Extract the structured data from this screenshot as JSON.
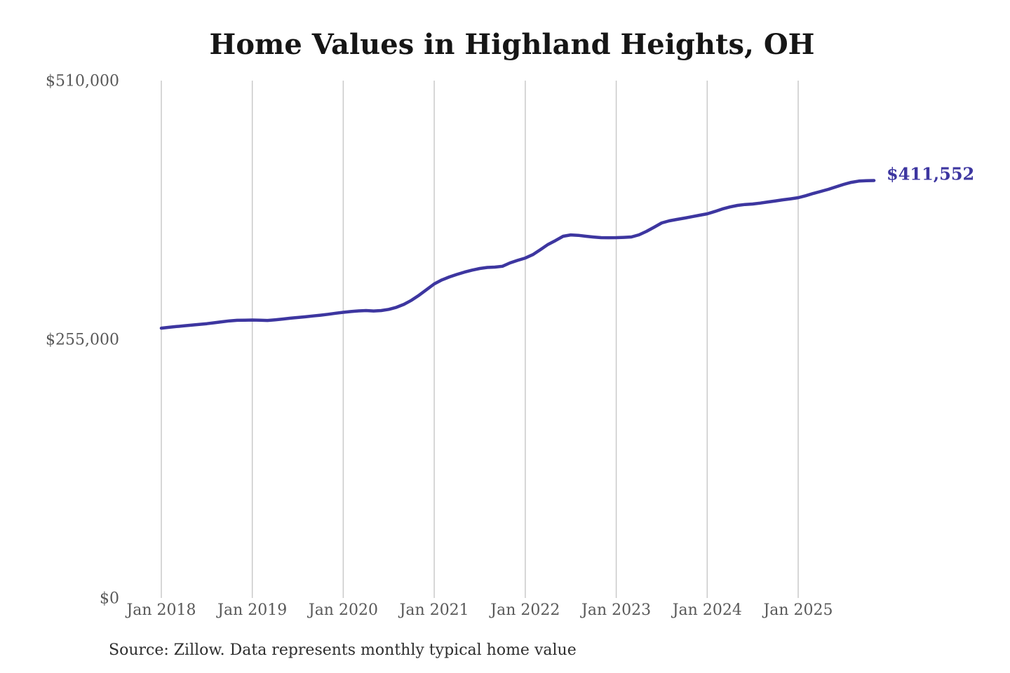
{
  "chart_data": {
    "type": "line",
    "title": "Home Values in Highland Heights, OH",
    "source": "Source: Zillow. Data represents monthly typical home value",
    "xlabel": "",
    "ylabel": "",
    "ylim": [
      0,
      510000
    ],
    "y_ticks": [
      0,
      255000,
      510000
    ],
    "y_tick_labels": [
      "$0",
      "$255,000",
      "$510,000"
    ],
    "x_tick_labels": [
      "Jan 2018",
      "Jan 2019",
      "Jan 2020",
      "Jan 2021",
      "Jan 2022",
      "Jan 2023",
      "Jan 2024",
      "Jan 2025"
    ],
    "grid": "vertical-only",
    "legend": "none",
    "line_color": "#3d36a0",
    "gridline_color": "#cacaca",
    "annotation": {
      "text": "$411,552",
      "value": 411552,
      "color": "#3d36a0"
    },
    "series": [
      {
        "name": "Monthly typical home value",
        "x": [
          "2018-01",
          "2018-02",
          "2018-03",
          "2018-04",
          "2018-05",
          "2018-06",
          "2018-07",
          "2018-08",
          "2018-09",
          "2018-10",
          "2018-11",
          "2018-12",
          "2019-01",
          "2019-02",
          "2019-03",
          "2019-04",
          "2019-05",
          "2019-06",
          "2019-07",
          "2019-08",
          "2019-09",
          "2019-10",
          "2019-11",
          "2019-12",
          "2020-01",
          "2020-02",
          "2020-03",
          "2020-04",
          "2020-05",
          "2020-06",
          "2020-07",
          "2020-08",
          "2020-09",
          "2020-10",
          "2020-11",
          "2020-12",
          "2021-01",
          "2021-02",
          "2021-03",
          "2021-04",
          "2021-05",
          "2021-06",
          "2021-07",
          "2021-08",
          "2021-09",
          "2021-10",
          "2021-11",
          "2021-12",
          "2022-01",
          "2022-02",
          "2022-03",
          "2022-04",
          "2022-05",
          "2022-06",
          "2022-07",
          "2022-08",
          "2022-09",
          "2022-10",
          "2022-11",
          "2022-12",
          "2023-01",
          "2023-02",
          "2023-03",
          "2023-04",
          "2023-05",
          "2023-06",
          "2023-07",
          "2023-08",
          "2023-09",
          "2023-10",
          "2023-11",
          "2023-12",
          "2024-01",
          "2024-02",
          "2024-03",
          "2024-04",
          "2024-05",
          "2024-06",
          "2024-07",
          "2024-08",
          "2024-09",
          "2024-10",
          "2024-11",
          "2024-12",
          "2025-01",
          "2025-02",
          "2025-03",
          "2025-04",
          "2025-05",
          "2025-06",
          "2025-07",
          "2025-08",
          "2025-09",
          "2025-10",
          "2025-11"
        ],
        "values": [
          266000,
          266800,
          267600,
          268300,
          269000,
          269700,
          270400,
          271300,
          272300,
          273200,
          273700,
          273900,
          274000,
          273800,
          273600,
          274200,
          275000,
          275800,
          276500,
          277200,
          278000,
          278800,
          279700,
          280700,
          281600,
          282400,
          283000,
          283300,
          282900,
          283300,
          284500,
          286500,
          289500,
          293500,
          298500,
          304000,
          309600,
          313500,
          316500,
          319000,
          321300,
          323200,
          324800,
          325800,
          326200,
          327000,
          330300,
          332800,
          335100,
          338500,
          343400,
          348500,
          352400,
          356600,
          357900,
          357500,
          356600,
          355800,
          355200,
          355100,
          355200,
          355500,
          355900,
          358000,
          361400,
          365500,
          369700,
          371800,
          373200,
          374500,
          375900,
          377300,
          378700,
          381000,
          383500,
          385500,
          387000,
          387900,
          388400,
          389300,
          390400,
          391400,
          392500,
          393500,
          394600,
          396500,
          398800,
          400800,
          402900,
          405300,
          407700,
          409700,
          411000,
          411400,
          411552
        ]
      }
    ]
  }
}
